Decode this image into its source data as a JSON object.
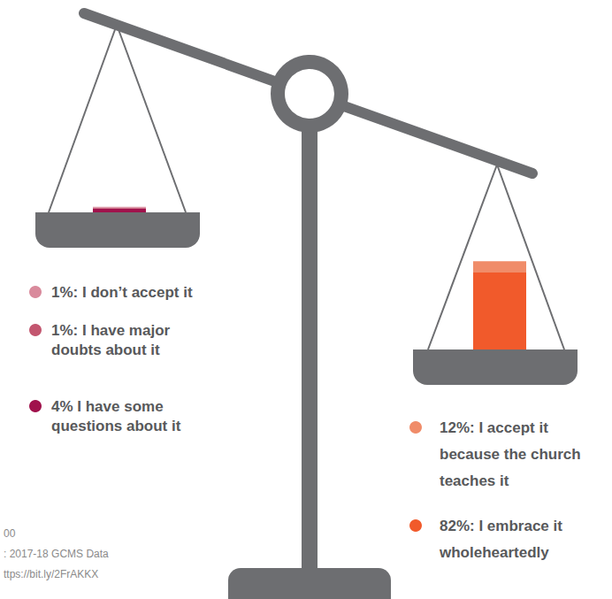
{
  "chart_data": {
    "type": "bar",
    "stacked": true,
    "grid": false,
    "tick_labels": false,
    "categories": [
      null,
      null
    ],
    "series": [
      {
        "name": "1%: I don’t accept it",
        "color": "#d98a9c",
        "values": [
          1,
          null
        ]
      },
      {
        "name": "1%: I have major doubts about it",
        "color": "#c3566f",
        "values": [
          1,
          null
        ]
      },
      {
        "name": "4% I have some questions about it",
        "color": "#a0124c",
        "values": [
          4,
          null
        ]
      },
      {
        "name": "12%: I accept it because the church teaches it",
        "color": "#f08c69",
        "values": [
          null,
          12
        ]
      },
      {
        "name": "82%: I embrace it wholeheartedly",
        "color": "#f15a2b",
        "values": [
          null,
          82
        ]
      }
    ],
    "annotations": [
      "00",
      ": 2017-18 GCMS Data",
      "ttps://bit.ly/2FrAKKX"
    ]
  }
}
